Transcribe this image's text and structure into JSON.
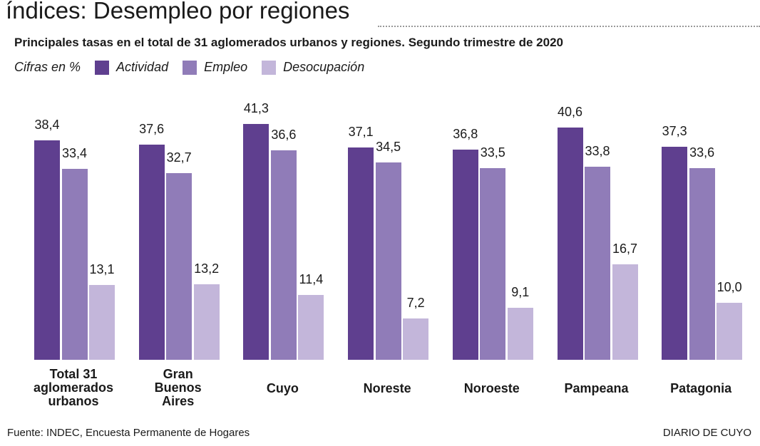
{
  "title": "índices: Desempleo por regiones",
  "subtitle": "Principales tasas en el total de 31 aglomerados urbanos y regiones. Segundo trimestre de 2020",
  "units": "Cifras en %",
  "source": "Fuente: INDEC, Encuesta Permanente de Hogares",
  "brand": "DIARIO DE CUYO",
  "chart_data": {
    "type": "bar",
    "title": "índices: Desempleo por regiones",
    "categories": [
      "Total 31 aglomerados urbanos",
      "Gran Buenos Aires",
      "Cuyo",
      "Noreste",
      "Noroeste",
      "Pampeana",
      "Patagonia"
    ],
    "series": [
      {
        "name": "Actividad",
        "color": "#5f3f8f",
        "values": [
          38.4,
          37.6,
          41.3,
          37.1,
          36.8,
          40.6,
          37.3
        ]
      },
      {
        "name": "Empleo",
        "color": "#907cb8",
        "values": [
          33.4,
          32.7,
          36.6,
          34.5,
          33.5,
          33.8,
          33.6
        ]
      },
      {
        "name": "Desocupación",
        "color": "#c3b6da",
        "values": [
          13.1,
          13.2,
          11.4,
          7.2,
          9.1,
          16.7,
          10.0
        ]
      }
    ],
    "ylim": [
      0,
      45
    ],
    "grid": false,
    "legend": "top-left"
  }
}
